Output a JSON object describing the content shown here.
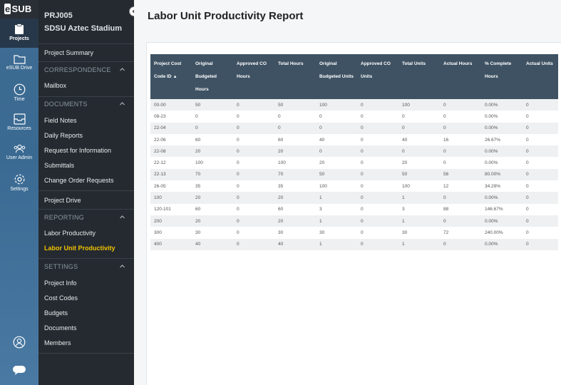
{
  "rail": {
    "logo": "SUB",
    "logo_prefix": "e",
    "items": [
      {
        "label": "Projects"
      },
      {
        "label": "eSUB Drive"
      },
      {
        "label": "Time"
      },
      {
        "label": "Resources"
      },
      {
        "label": "User Admin"
      },
      {
        "label": "Settings"
      }
    ]
  },
  "project": {
    "code": "PRJ005",
    "name": "SDSU Aztec Stadium"
  },
  "nav": {
    "project_summary": "Project Summary",
    "correspondence": "CORRESPONDENCE",
    "mailbox": "Mailbox",
    "documents": "DOCUMENTS",
    "documents_items": [
      "Field Notes",
      "Daily Reports",
      "Request for Information",
      "Submittals",
      "Change Order Requests"
    ],
    "project_drive": "Project Drive",
    "reporting": "REPORTING",
    "reporting_items": [
      "Labor Productivity",
      "Labor Unit Productivity"
    ],
    "settings": "SETTINGS",
    "settings_items": [
      "Project Info",
      "Cost Codes",
      "Budgets",
      "Documents",
      "Members"
    ]
  },
  "page": {
    "title": "Labor Unit Productivity Report"
  },
  "table": {
    "headers": [
      "Project Cost Code ID",
      "Original Budgeted Hours",
      "Approved CO Hours",
      "Total Hours",
      "Original Budgeted Units",
      "Approved CO Units",
      "Total Units",
      "Actual Hours",
      "% Complete Hours",
      "Actual Units"
    ],
    "sort_indicator": "▲",
    "rows": [
      [
        "00-00",
        "50",
        "0",
        "50",
        "100",
        "0",
        "100",
        "0",
        "0.00%",
        "0"
      ],
      [
        "08-23",
        "0",
        "0",
        "0",
        "0",
        "0",
        "0",
        "0",
        "0.00%",
        "0"
      ],
      [
        "22-04",
        "0",
        "0",
        "0",
        "0",
        "0",
        "0",
        "0",
        "0.00%",
        "0"
      ],
      [
        "22-06",
        "60",
        "0",
        "60",
        "40",
        "0",
        "40",
        "16",
        "26.67%",
        "0"
      ],
      [
        "22-08",
        "20",
        "0",
        "20",
        "0",
        "0",
        "0",
        "0",
        "0.00%",
        "0"
      ],
      [
        "22-12",
        "100",
        "0",
        "100",
        "20",
        "0",
        "20",
        "0",
        "0.00%",
        "0"
      ],
      [
        "22-13",
        "70",
        "0",
        "70",
        "50",
        "0",
        "50",
        "56",
        "80.00%",
        "0"
      ],
      [
        "26-05",
        "35",
        "0",
        "35",
        "100",
        "0",
        "100",
        "12",
        "34.29%",
        "0"
      ],
      [
        "100",
        "20",
        "0",
        "20",
        "1",
        "0",
        "1",
        "0",
        "0.00%",
        "0"
      ],
      [
        "120-101",
        "60",
        "0",
        "60",
        "3",
        "0",
        "3",
        "88",
        "146.67%",
        "0"
      ],
      [
        "200",
        "20",
        "0",
        "20",
        "1",
        "0",
        "1",
        "0",
        "0.00%",
        "0"
      ],
      [
        "300",
        "30",
        "0",
        "30",
        "30",
        "0",
        "30",
        "72",
        "240.00%",
        "0"
      ],
      [
        "400",
        "40",
        "0",
        "40",
        "1",
        "0",
        "1",
        "0",
        "0.00%",
        "0"
      ]
    ]
  },
  "colors": {
    "accent": "#f2c200",
    "nav_bg": "#242a30",
    "rail_bg": "#3f6c93",
    "table_header": "#3e5263"
  }
}
